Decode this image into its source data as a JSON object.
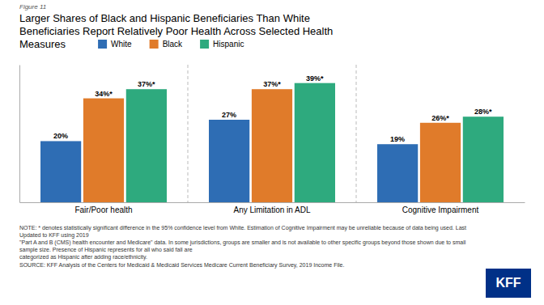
{
  "chart_data": {
    "type": "bar",
    "title": [
      "Larger Shares of Black and Hispanic Beneficiaries Than White",
      "Beneficiaries Report Relatively Poor Health Across Selected Health",
      "Measures"
    ],
    "categories": [
      "Fair/Poor health",
      "Any Limitation in ADL",
      "Cognitive Impairment"
    ],
    "series": [
      {
        "name": "White",
        "color": "#2E6DB4",
        "values": [
          20,
          27,
          19
        ],
        "value_labels": [
          "20%",
          "27%",
          "19%"
        ]
      },
      {
        "name": "Black",
        "color": "#E07B2A",
        "values": [
          34,
          37,
          26
        ],
        "value_labels": [
          "34%*",
          "37%*",
          "26%*"
        ]
      },
      {
        "name": "Hispanic",
        "color": "#2EAA7E",
        "values": [
          37,
          39,
          28
        ],
        "value_labels": [
          "37%*",
          "39%*",
          "28%*"
        ]
      }
    ],
    "ylim": [
      0,
      45
    ],
    "grid": false,
    "legend": "top",
    "data_labels": true,
    "tick_labels": "x",
    "annotations": [
      "Figure 11",
      "NOTE: * denotes statistically significant difference in the 95% confidence level from White. Estimation of Cognitive Impairment may be unreliable because of data being used. Last Updated to KFF using 2019",
      "\"Part A and B (CMS) health encounter and Medicare\" data. In some jurisdictions, groups are smaller and is not available to other specific groups beyond those shown due to small sample size. Presence of Hispanic represents for all who said fall are",
      "categorized as Hispanic after adding race/ethnicity.",
      "SOURCE: KFF Analysis of the Centers for Medicaid & Medicaid Services Medicare Current Beneficiary Survey, 2019 Income File.",
      "KFF"
    ]
  }
}
